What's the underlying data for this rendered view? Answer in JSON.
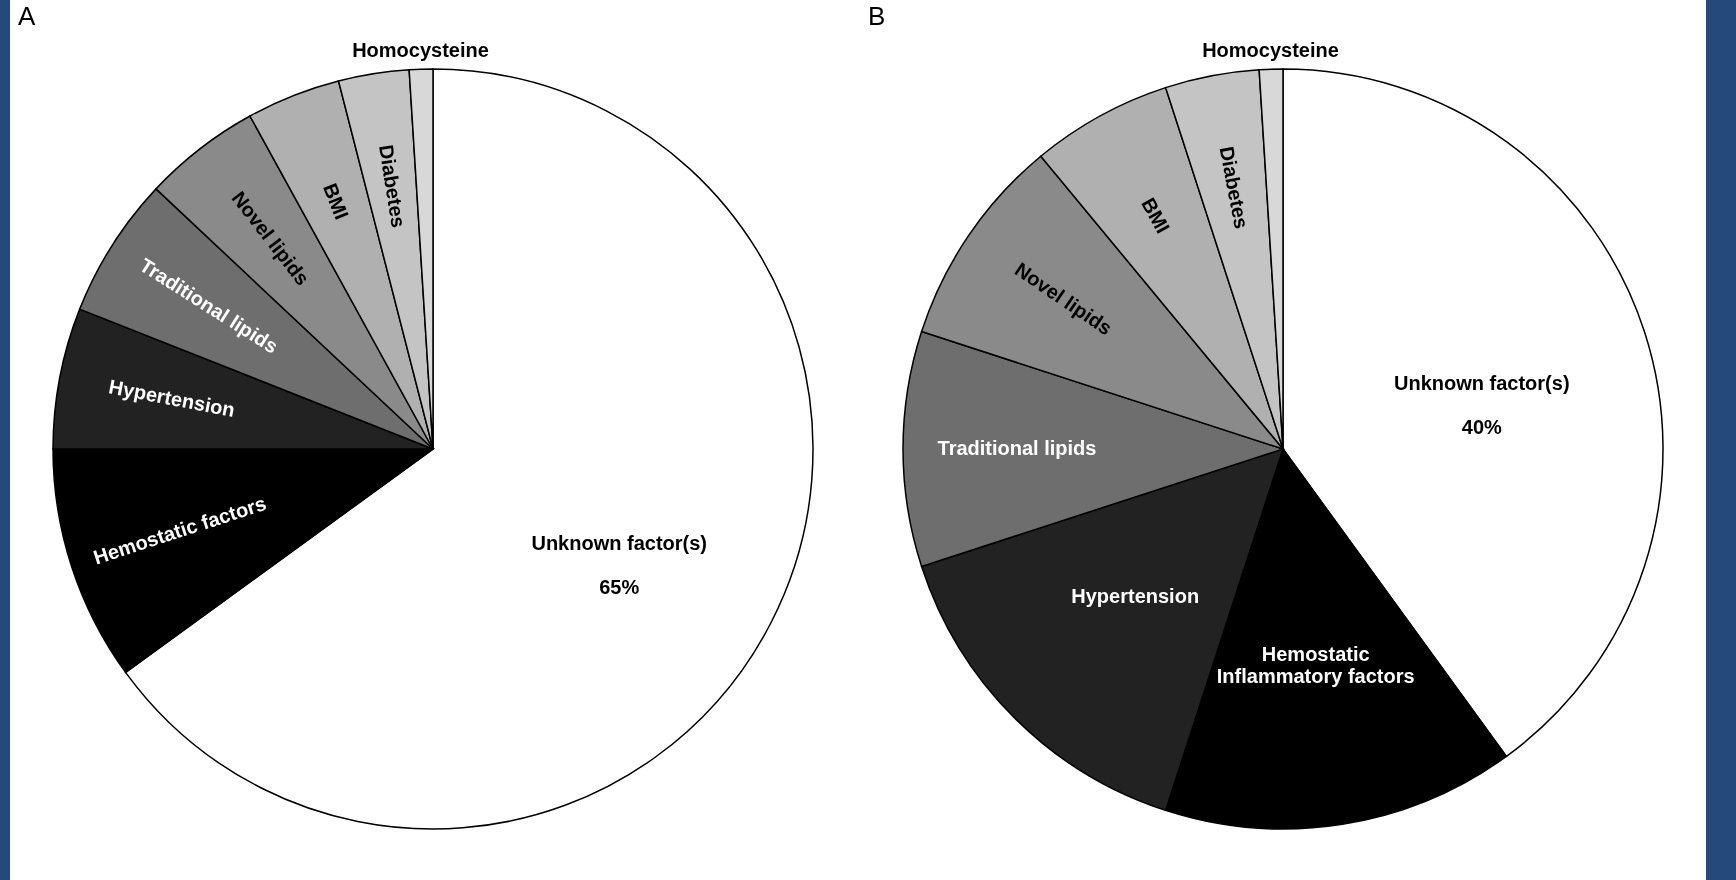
{
  "chart_data": [
    {
      "type": "pie",
      "title": "A",
      "categories": [
        "Unknown factor(s)",
        "Hemostatic factors",
        "Hypertension",
        "Traditional lipids",
        "Novel lipids",
        "BMI",
        "Diabetes",
        "Homocysteine"
      ],
      "values": [
        65,
        10,
        6,
        6,
        5,
        4,
        3,
        1
      ],
      "colors": [
        "#ffffff",
        "#000000",
        "#222222",
        "#6e6e6e",
        "#8a8a8a",
        "#b0b0b0",
        "#c4c4c4",
        "#d8d8d8"
      ],
      "value_labels": [
        "65%",
        null,
        null,
        null,
        null,
        null,
        null,
        null
      ],
      "legend": false
    },
    {
      "type": "pie",
      "title": "B",
      "categories": [
        "Unknown factor(s)",
        "Hemostatic\nInflammatory factors",
        "Hypertension",
        "Traditional lipids",
        "Novel lipids",
        "BMI",
        "Diabetes",
        "Homocysteine"
      ],
      "values": [
        40,
        15,
        15,
        10,
        9,
        6,
        4,
        1
      ],
      "colors": [
        "#ffffff",
        "#000000",
        "#222222",
        "#6e6e6e",
        "#8a8a8a",
        "#b0b0b0",
        "#c4c4c4",
        "#d8d8d8"
      ],
      "value_labels": [
        "40%",
        null,
        null,
        null,
        null,
        null,
        null,
        null
      ],
      "legend": false
    }
  ]
}
